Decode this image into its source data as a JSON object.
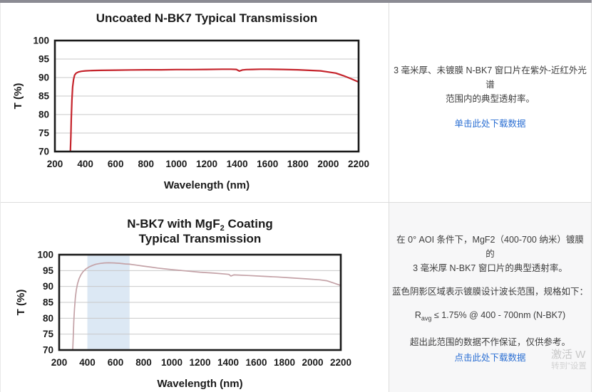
{
  "page": {
    "top_bar_color": "#8b8b93",
    "border_color": "#dcdcdc",
    "bottom_panel_bg": "#f7f7f8",
    "link_color": "#2b6fd3",
    "watermark": {
      "line1": "激活 W",
      "line2": "转到“设置"
    }
  },
  "descriptions": {
    "top": {
      "lines": [
        "3 毫米厚、未镀膜 N-BK7 窗口片在紫外-近红外光谱",
        "范围内的典型透射率。"
      ],
      "link": "单击此处下载数据"
    },
    "bottom": {
      "p1_lines": [
        "在 0° AOI 条件下，MgF2（400-700 纳米）镀膜的",
        "3 毫米厚 N-BK7 窗口片的典型透射率。"
      ],
      "p2": "蓝色阴影区域表示镀膜设计波长范围，规格如下：",
      "spec": {
        "base": "R",
        "sub": "avg",
        "rest": " ≤ 1.75% @ 400 - 700nm (N-BK7)"
      },
      "p4": "超出此范围的数据不作保证，仅供参考。",
      "link": "点击此处下载数据"
    }
  },
  "chart_data": [
    {
      "type": "line",
      "title": "Uncoated N-BK7 Typical Transmission",
      "title_lines": [
        [
          {
            "t": "Uncoated N-BK7 Typical Transmission"
          }
        ]
      ],
      "xlabel": "Wavelength (nm)",
      "ylabel": "T (%)",
      "xlim": [
        200,
        2200
      ],
      "ylim": [
        70,
        100
      ],
      "x_ticks": [
        200,
        400,
        600,
        800,
        1000,
        1200,
        1400,
        1600,
        1800,
        2000,
        2200
      ],
      "y_ticks": [
        70,
        75,
        80,
        85,
        90,
        95,
        100
      ],
      "grid": "horizontal",
      "legend": "none",
      "line_color": "#c5242c",
      "axis_color": "#1a1a1a",
      "grid_color": "#c9c9c9",
      "x": [
        302,
        305,
        308,
        312,
        317,
        323,
        330,
        340,
        355,
        375,
        400,
        450,
        500,
        600,
        700,
        800,
        900,
        1000,
        1100,
        1200,
        1300,
        1360,
        1395,
        1415,
        1435,
        1460,
        1500,
        1550,
        1600,
        1700,
        1800,
        1900,
        1950,
        2000,
        2050,
        2100,
        2150,
        2200
      ],
      "y": [
        70,
        74,
        79,
        84,
        87.5,
        89.5,
        90.7,
        91.2,
        91.5,
        91.7,
        91.8,
        91.9,
        91.95,
        92,
        92.05,
        92.1,
        92.1,
        92.15,
        92.15,
        92.2,
        92.25,
        92.25,
        92.2,
        91.75,
        92.05,
        92.15,
        92.2,
        92.25,
        92.25,
        92.2,
        92.1,
        91.9,
        91.8,
        91.5,
        91.2,
        90.5,
        89.7,
        88.8
      ]
    },
    {
      "type": "line",
      "title": "N-BK7 with MgF2 Coating Typical Transmission",
      "title_lines": [
        [
          {
            "t": "N-BK7 with MgF"
          },
          {
            "t": "2",
            "sub": true
          },
          {
            "t": " Coating"
          }
        ],
        [
          {
            "t": "Typical Transmission"
          }
        ]
      ],
      "xlabel": "Wavelength (nm)",
      "ylabel": "T (%)",
      "xlim": [
        200,
        2200
      ],
      "ylim": [
        70,
        100
      ],
      "x_ticks": [
        200,
        400,
        600,
        800,
        1000,
        1200,
        1400,
        1600,
        1800,
        2000,
        2200
      ],
      "y_ticks": [
        70,
        75,
        80,
        85,
        90,
        95,
        100
      ],
      "grid": "horizontal",
      "legend": "none",
      "band": {
        "x_start": 400,
        "x_end": 700,
        "color": "#dce8f4",
        "label": "coating design wavelength range 400-700 nm"
      },
      "line_color": "#c4a2a7",
      "axis_color": "#1a1a1a",
      "grid_color": "#c9c9c9",
      "x": [
        296,
        300,
        304,
        309,
        315,
        322,
        331,
        342,
        355,
        370,
        390,
        410,
        435,
        460,
        490,
        520,
        550,
        590,
        630,
        670,
        700,
        750,
        800,
        850,
        900,
        1000,
        1100,
        1200,
        1300,
        1380,
        1405,
        1420,
        1440,
        1470,
        1550,
        1650,
        1750,
        1850,
        1950,
        2050,
        2100,
        2150,
        2200
      ],
      "y": [
        70,
        74.5,
        79,
        83,
        86.5,
        89,
        91,
        92.5,
        93.7,
        94.7,
        95.5,
        96.1,
        96.6,
        97,
        97.25,
        97.4,
        97.45,
        97.4,
        97.3,
        97.1,
        97,
        96.7,
        96.4,
        96.1,
        95.8,
        95.3,
        94.9,
        94.5,
        94.2,
        93.9,
        93.8,
        93.3,
        93.65,
        93.6,
        93.45,
        93.2,
        93,
        92.7,
        92.4,
        92.1,
        91.8,
        91.1,
        90.3
      ]
    }
  ]
}
